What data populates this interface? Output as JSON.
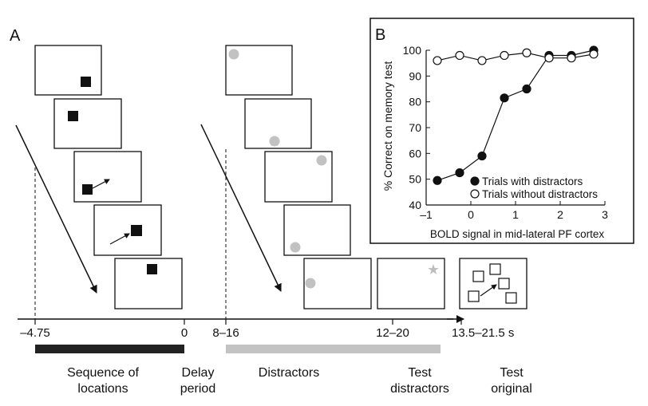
{
  "panel_a": {
    "letter": "A",
    "time_ticks": [
      "–4.75",
      "0",
      "8–16",
      "12–20",
      "13.5–21.5 s"
    ],
    "phases": {
      "sequence": [
        "Sequence of",
        "locations"
      ],
      "delay": [
        "Delay",
        "period"
      ],
      "distractors": [
        "Distractors"
      ],
      "test_distractors": [
        "Test",
        "distractors"
      ],
      "test_original": [
        "Test",
        "original"
      ]
    },
    "colors": {
      "black_bar": "#222222",
      "gray_bar": "#c3c3c3",
      "distractor_dot": "#c2c2c2"
    }
  },
  "panel_b": {
    "letter": "B",
    "chart_data": {
      "type": "line",
      "xlabel": "BOLD signal in mid-lateral PF cortex",
      "ylabel": "% Correct on memory test",
      "xlim": [
        -1,
        3
      ],
      "ylim": [
        40,
        100
      ],
      "xticks": [
        -1,
        0,
        1,
        2,
        3
      ],
      "yticks": [
        40,
        50,
        60,
        70,
        80,
        90,
        100
      ],
      "legend_position": "bottom-right",
      "series": [
        {
          "name": "Trials with distractors",
          "marker": "filled",
          "x": [
            -0.75,
            -0.25,
            0.25,
            0.75,
            1.25,
            1.75,
            2.25,
            2.75
          ],
          "y": [
            49.5,
            52.5,
            59,
            81.5,
            85,
            98,
            98,
            100
          ]
        },
        {
          "name": "Trials without distractors",
          "marker": "open",
          "x": [
            -0.75,
            -0.25,
            0.25,
            0.75,
            1.25,
            1.75,
            2.25,
            2.75
          ],
          "y": [
            96,
            98,
            96,
            98,
            99,
            97,
            97,
            98.5
          ]
        }
      ]
    }
  }
}
